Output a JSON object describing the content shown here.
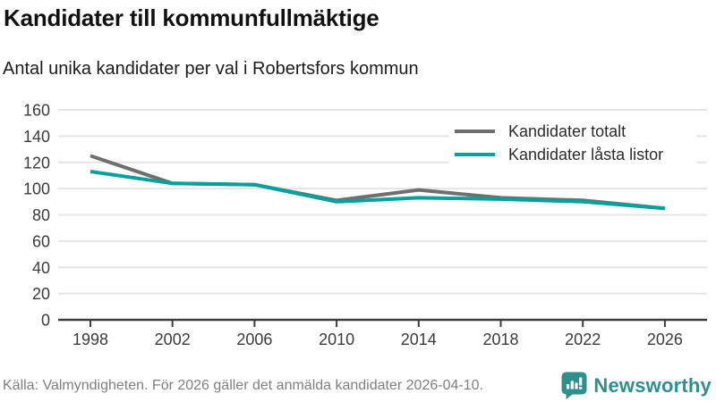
{
  "header": {
    "title": "Kandidater till kommunfullmäktige",
    "subtitle": "Antal unika kandidater per val i Robertsfors kommun"
  },
  "chart_data": {
    "type": "line",
    "x": [
      1998,
      2002,
      2006,
      2010,
      2014,
      2018,
      2022,
      2026
    ],
    "series": [
      {
        "name": "Kandidater totalt",
        "color": "#6f6f6f",
        "values": [
          125,
          104,
          103,
          91,
          99,
          93,
          91,
          85
        ]
      },
      {
        "name": "Kandidater låsta listor",
        "color": "#00a29e",
        "values": [
          113,
          104,
          103,
          90,
          93,
          92,
          90,
          85
        ]
      }
    ],
    "ylim": [
      0,
      160
    ],
    "ytick_step": 20,
    "grid": "horizontal-only",
    "legend_position": "top-right-inside",
    "axis_color": "#3d3d3d",
    "gridline_color": "#e4e4e4",
    "tick_label_color": "#3b3b3b"
  },
  "footer": {
    "source": "Källa: Valmyndigheten. För 2026 gäller det anmälda kandidater 2026-04-10.",
    "brand": "Newsworthy",
    "brand_color": "#2e8f8c",
    "logo_icon": "bar-chart-speech-bubble-icon"
  }
}
